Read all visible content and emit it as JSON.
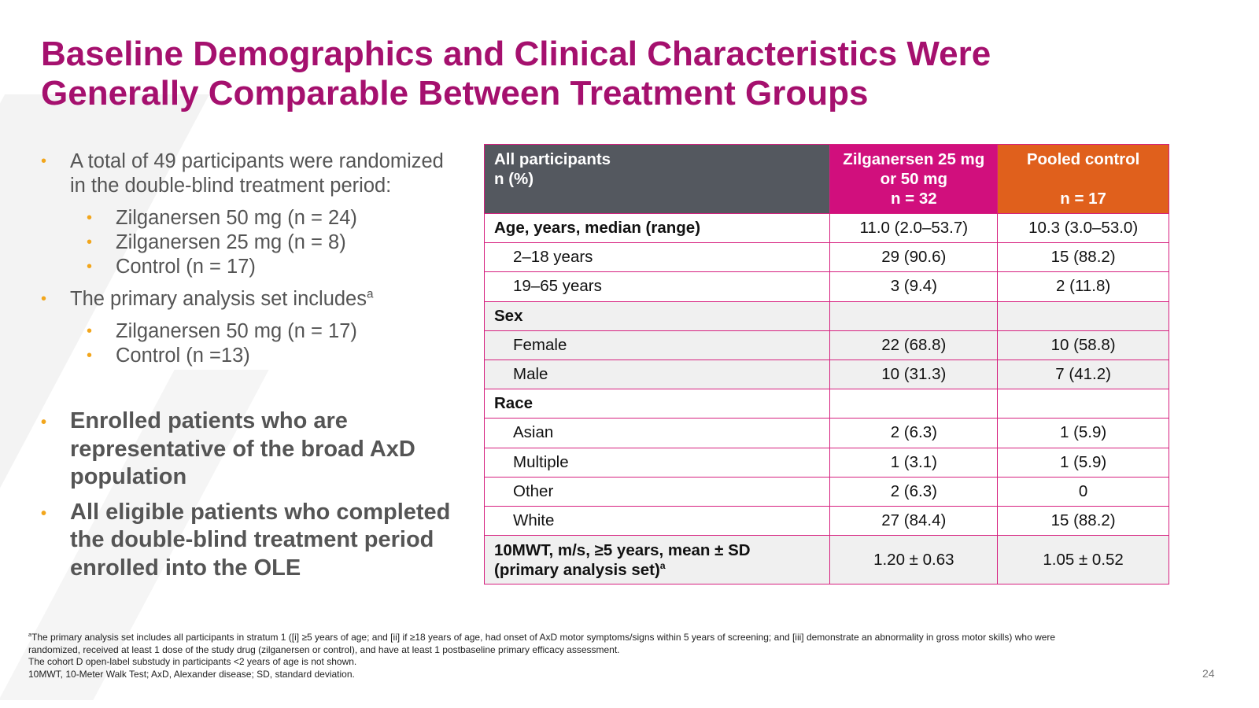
{
  "title": {
    "line1": "Baseline Demographics and Clinical Characteristics Were",
    "line2": "Generally Comparable Between Treatment Groups"
  },
  "bullets": {
    "b1_line1": "A total of 49 participants were randomized",
    "b1_line2": "in the double-blind treatment period:",
    "b1_sub": [
      "Zilganersen 50 mg (n = 24)",
      "Zilganersen 25 mg (n = 8)",
      "Control (n = 17)"
    ],
    "b2_text": "The primary analysis set includes",
    "b2_sup": "a",
    "b2_sub": [
      "Zilganersen 50 mg (n = 17)",
      "Control (n =13)"
    ],
    "b3_lines": [
      "Enrolled patients who are",
      "representative of the broad AxD",
      "population"
    ],
    "b4_lines": [
      "All eligible patients who completed",
      "the double-blind treatment period",
      "enrolled into the OLE"
    ]
  },
  "table": {
    "header": {
      "col0_line1": "All participants",
      "col0_line2": "n (%)",
      "col1_line1": "Zilganersen 25 mg",
      "col1_line2": "or 50 mg",
      "col1_line3": "n = 32",
      "col2_line1": "Pooled control",
      "col2_line3": "n = 17"
    },
    "rows": [
      {
        "label": "Age, years, median (range)",
        "v1": "11.0 (2.0–53.7)",
        "v2": "10.3 (3.0–53.0)"
      },
      {
        "label": "2–18 years",
        "v1": "29 (90.6)",
        "v2": "15 (88.2)"
      },
      {
        "label": "19–65 years",
        "v1": "3 (9.4)",
        "v2": "2 (11.8)"
      },
      {
        "label": "Sex",
        "v1": "",
        "v2": ""
      },
      {
        "label": "Female",
        "v1": "22 (68.8)",
        "v2": "10 (58.8)"
      },
      {
        "label": "Male",
        "v1": "10 (31.3)",
        "v2": "7 (41.2)"
      },
      {
        "label": "Race",
        "v1": "",
        "v2": ""
      },
      {
        "label": "Asian",
        "v1": "2 (6.3)",
        "v2": "1 (5.9)"
      },
      {
        "label": "Multiple",
        "v1": "1 (3.1)",
        "v2": "1 (5.9)"
      },
      {
        "label": "Other",
        "v1": "2 (6.3)",
        "v2": "0"
      },
      {
        "label": "White",
        "v1": "27 (84.4)",
        "v2": "15 (88.2)"
      }
    ],
    "last_row": {
      "label_line1": "10MWT, m/s, ≥5 years, mean ± SD",
      "label_line2": "(primary analysis set)",
      "label_sup": "a",
      "v1": "1.20 ± 0.63",
      "v2": "1.05 ± 0.52"
    }
  },
  "footnotes": {
    "sup": "a",
    "line1": "The primary analysis set includes all participants in stratum 1 ([i] ≥5 years of age; and [ii] if ≥18 years of age, had onset of AxD motor symptoms/signs within 5 years of screening; and [iii] demonstrate an abnormality in gross motor skills) who were",
    "line2": "randomized, received at least 1 dose of the study drug (zilganersen or control), and have at least 1 postbaseline primary efficacy assessment.",
    "line3": "The cohort D open-label substudy in participants <2 years of age is not shown.",
    "line4": "10MWT, 10-Meter Walk Test; AxD, Alexander disease; SD, standard deviation."
  },
  "page_number": "24",
  "colors": {
    "title": "#a5106e",
    "bullet": "#f2a61c",
    "header_gray": "#54585f",
    "header_magenta": "#d10f7d",
    "header_orange": "#e0601c",
    "table_border": "#d6207f"
  }
}
